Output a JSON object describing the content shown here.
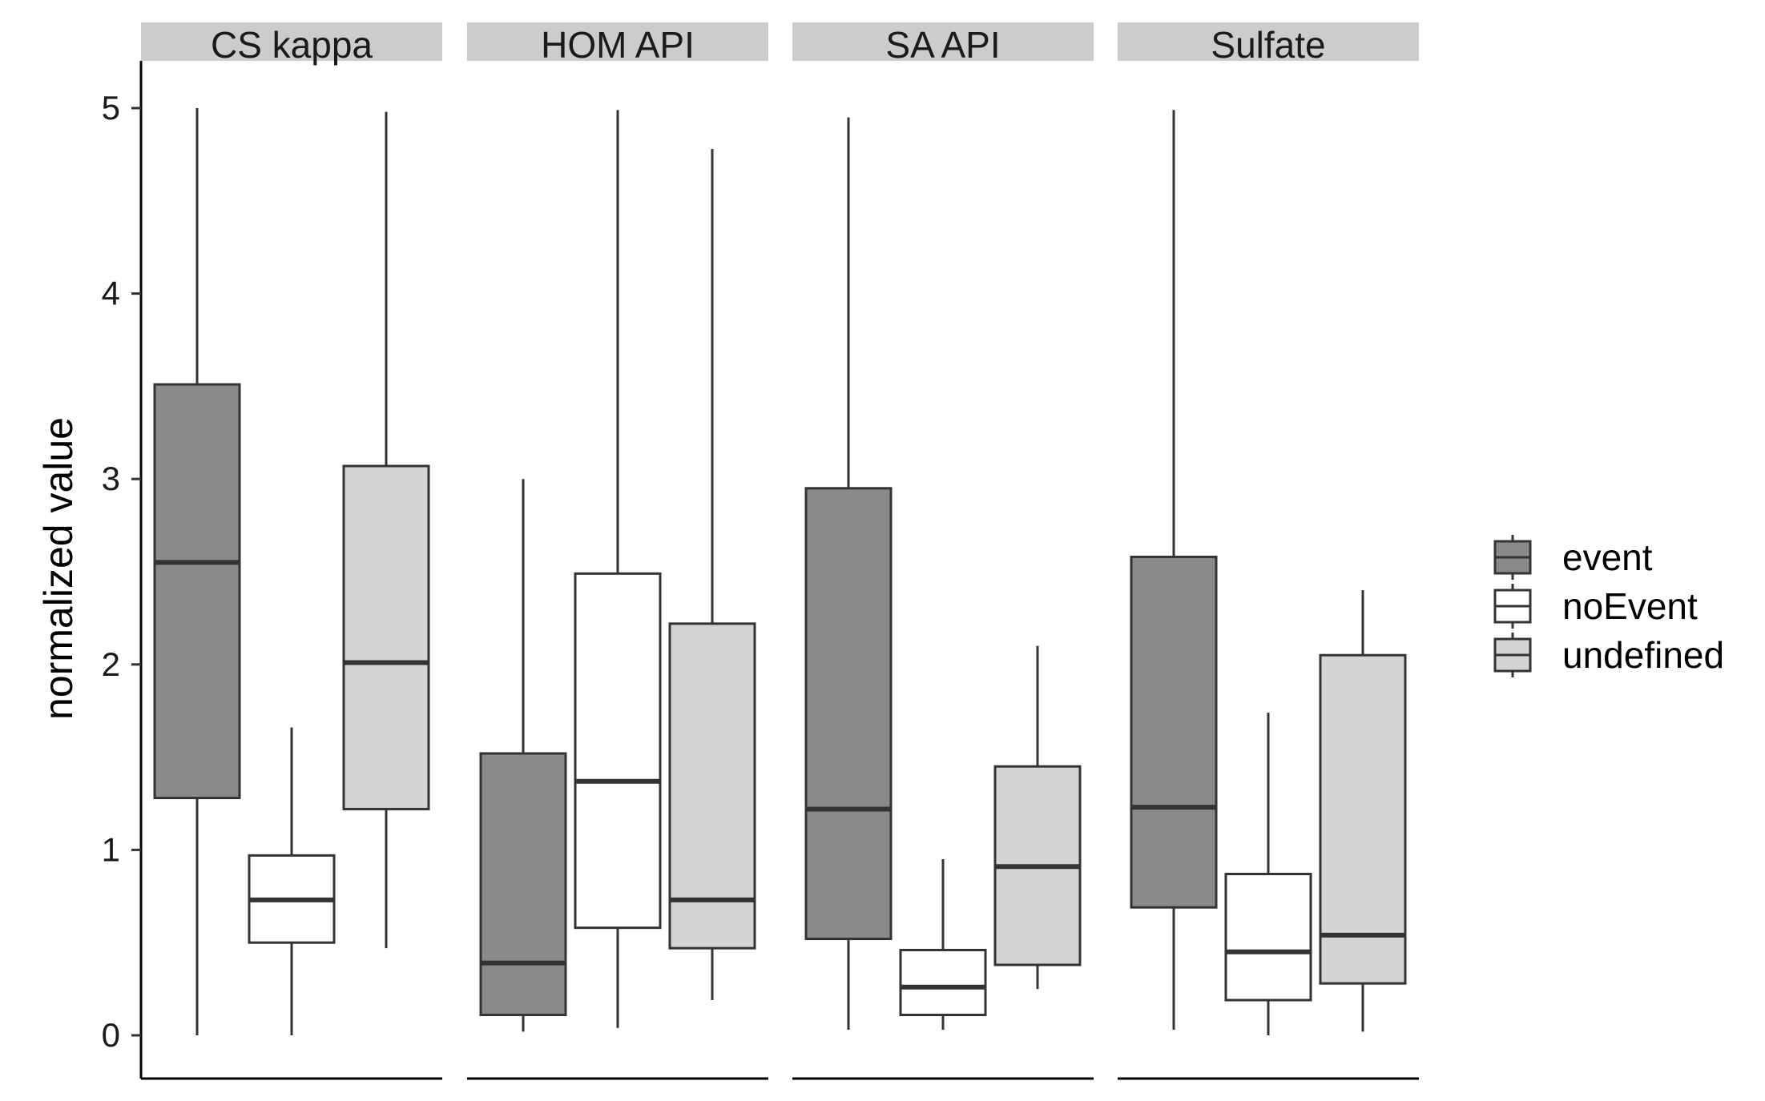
{
  "chart_data": {
    "type": "boxplot",
    "ylabel": "normalized value",
    "xlabel": "",
    "ylim": [
      0,
      5
    ],
    "yticks": [
      0,
      1,
      2,
      3,
      4,
      5
    ],
    "grid": false,
    "legend_position": "right",
    "groups": [
      {
        "name": "event",
        "color": "#8a8a8a"
      },
      {
        "name": "noEvent",
        "color": "#ffffff"
      },
      {
        "name": "undefined",
        "color": "#d4d4d4"
      }
    ],
    "facets": [
      {
        "label": "CS  kappa",
        "boxes": [
          {
            "group": "event",
            "min": 0.0,
            "q1": 1.28,
            "median": 2.55,
            "q3": 3.51,
            "max": 5.0
          },
          {
            "group": "noEvent",
            "min": 0.0,
            "q1": 0.5,
            "median": 0.73,
            "q3": 0.97,
            "max": 1.66
          },
          {
            "group": "undefined",
            "min": 0.47,
            "q1": 1.22,
            "median": 2.01,
            "q3": 3.07,
            "max": 4.98
          }
        ]
      },
      {
        "label": "HOM  API",
        "boxes": [
          {
            "group": "event",
            "min": 0.02,
            "q1": 0.11,
            "median": 0.39,
            "q3": 1.52,
            "max": 3.0
          },
          {
            "group": "noEvent",
            "min": 0.04,
            "q1": 0.58,
            "median": 1.37,
            "q3": 2.49,
            "max": 4.99
          },
          {
            "group": "undefined",
            "min": 0.19,
            "q1": 0.47,
            "median": 0.73,
            "q3": 2.22,
            "max": 4.78
          }
        ]
      },
      {
        "label": "SA  API",
        "boxes": [
          {
            "group": "event",
            "min": 0.03,
            "q1": 0.52,
            "median": 1.22,
            "q3": 2.95,
            "max": 4.95
          },
          {
            "group": "noEvent",
            "min": 0.03,
            "q1": 0.11,
            "median": 0.26,
            "q3": 0.46,
            "max": 0.95
          },
          {
            "group": "undefined",
            "min": 0.25,
            "q1": 0.38,
            "median": 0.91,
            "q3": 1.45,
            "max": 2.1
          }
        ]
      },
      {
        "label": "Sulfate",
        "boxes": [
          {
            "group": "event",
            "min": 0.03,
            "q1": 0.69,
            "median": 1.23,
            "q3": 2.58,
            "max": 4.99
          },
          {
            "group": "noEvent",
            "min": 0.0,
            "q1": 0.19,
            "median": 0.45,
            "q3": 0.87,
            "max": 1.74
          },
          {
            "group": "undefined",
            "min": 0.02,
            "q1": 0.28,
            "median": 0.54,
            "q3": 2.05,
            "max": 2.4
          }
        ]
      }
    ]
  }
}
